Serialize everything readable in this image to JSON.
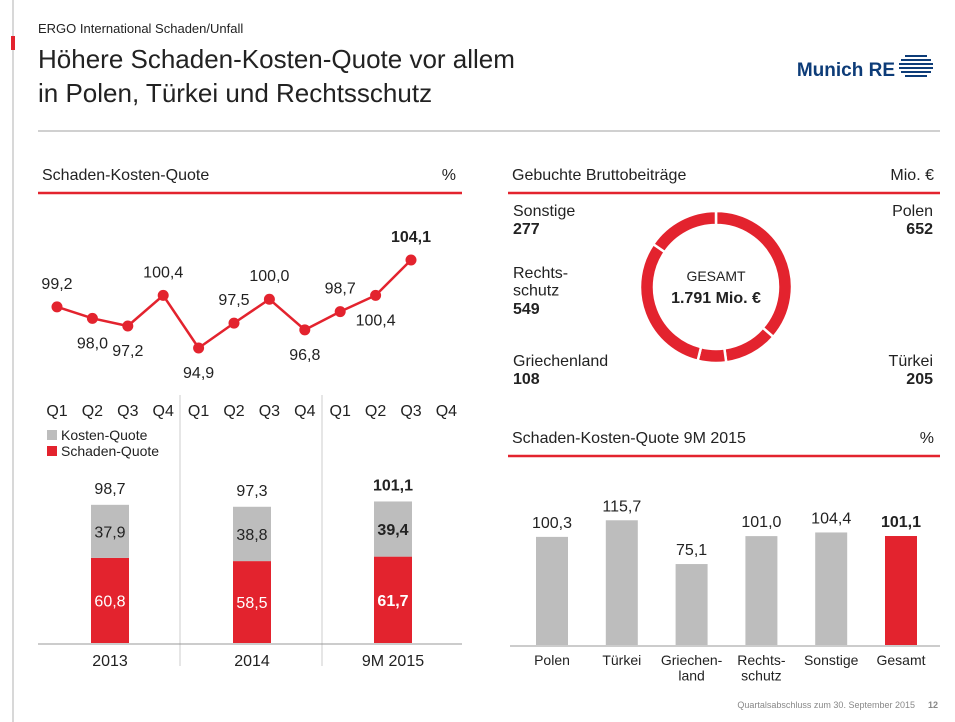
{
  "header": {
    "supertitle": "ERGO International Schaden/Unfall",
    "title": [
      "Höhere Schaden-Kosten-Quote vor allem",
      "in Polen, Türkei und Rechtsschutz"
    ],
    "logo": "Munich RE"
  },
  "footer": {
    "text": "Quartalsabschluss zum 30. September 2015",
    "page": "12"
  },
  "chart_data": [
    {
      "type": "line",
      "title": "Schaden-Kosten-Quote",
      "unit": "%",
      "categories": [
        "Q1",
        "Q2",
        "Q3",
        "Q4",
        "Q1",
        "Q2",
        "Q3",
        "Q4",
        "Q1",
        "Q2",
        "Q3",
        "Q4"
      ],
      "values": [
        99.2,
        98.0,
        97.2,
        100.4,
        94.9,
        97.5,
        100.0,
        96.8,
        98.7,
        100.4,
        104.1,
        null
      ],
      "value_labels": [
        "99,2",
        "98,0",
        "97,2",
        "100,4",
        "94,9",
        "97,5",
        "100,0",
        "96,8",
        "98,7",
        "100,4",
        "104,1",
        null
      ],
      "color": "#e3232e"
    },
    {
      "type": "stacked_bar",
      "categories": [
        "2013",
        "2014",
        "9M 2015"
      ],
      "series": [
        {
          "name": "Kosten-Quote",
          "color": "#bdbdbd",
          "values": [
            37.9,
            38.8,
            39.4
          ],
          "value_labels": [
            "37,9",
            "38,8",
            "39,4"
          ]
        },
        {
          "name": "Schaden-Quote",
          "color": "#e3232e",
          "values": [
            60.8,
            58.5,
            61.7
          ],
          "value_labels": [
            "60,8",
            "58,5",
            "61,7"
          ]
        }
      ],
      "totals": [
        98.7,
        97.3,
        101.1
      ],
      "total_labels": [
        "98,7",
        "97,3",
        "101,1"
      ]
    },
    {
      "type": "donut",
      "title": "Gebuchte Bruttobeiträge",
      "unit": "Mio. €",
      "center_label": "GESAMT",
      "total": 1791,
      "total_label": "1.791 Mio. €",
      "categories": [
        "Polen",
        "Türkei",
        "Griechenland",
        "Rechts-\nschutz",
        "Sonstige"
      ],
      "values": [
        652,
        205,
        108,
        549,
        277
      ],
      "color": "#e3232e"
    },
    {
      "type": "bar",
      "title": "Schaden-Kosten-Quote 9M 2015",
      "unit": "%",
      "categories": [
        "Polen",
        "Türkei",
        "Griechen-\nland",
        "Rechts-\nschutz",
        "Sonstige",
        "Gesamt"
      ],
      "values": [
        100.3,
        115.7,
        75.1,
        101.0,
        104.4,
        101.1
      ],
      "value_labels": [
        "100,3",
        "115,7",
        "75,1",
        "101,0",
        "104,4",
        "101,1"
      ],
      "colors": [
        "#bdbdbd",
        "#bdbdbd",
        "#bdbdbd",
        "#bdbdbd",
        "#bdbdbd",
        "#e3232e"
      ]
    }
  ]
}
